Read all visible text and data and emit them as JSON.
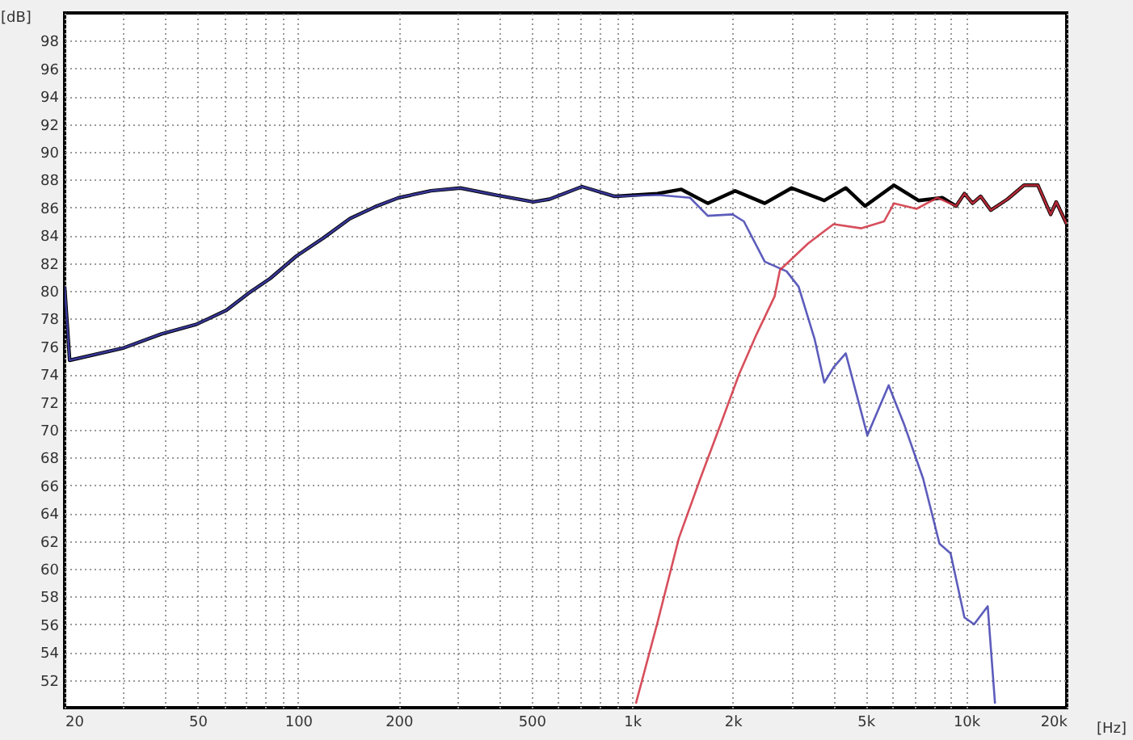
{
  "chart_data": {
    "type": "line",
    "xlabel": "[Hz]",
    "ylabel": "[dB]",
    "log": "x",
    "grid": true,
    "line_style": "solid",
    "marker": "none",
    "xlim": [
      20,
      20000
    ],
    "ylim": [
      50,
      100
    ],
    "xticks": [
      20,
      {
        "value": 30,
        "label": null
      },
      {
        "value": 40,
        "label": null
      },
      50,
      {
        "value": 60,
        "label": null
      },
      {
        "value": 70,
        "label": null
      },
      {
        "value": 80,
        "label": null
      },
      {
        "value": 90,
        "label": null
      },
      100,
      200,
      {
        "value": 300,
        "label": null
      },
      {
        "value": 400,
        "label": null
      },
      500,
      {
        "value": 600,
        "label": null
      },
      {
        "value": 700,
        "label": null
      },
      {
        "value": 800,
        "label": null
      },
      {
        "value": 900,
        "label": null
      },
      {
        "value": 1000,
        "label": "1k"
      },
      {
        "value": 2000,
        "label": "2k"
      },
      {
        "value": 3000,
        "label": null
      },
      {
        "value": 4000,
        "label": null
      },
      {
        "value": 5000,
        "label": "5k"
      },
      {
        "value": 6000,
        "label": null
      },
      {
        "value": 7000,
        "label": null
      },
      {
        "value": 8000,
        "label": null
      },
      {
        "value": 9000,
        "label": null
      },
      {
        "value": 10000,
        "label": "10k"
      },
      {
        "value": 20000,
        "label": "20k"
      }
    ],
    "yticks": [
      52,
      54,
      56,
      58,
      60,
      62,
      64,
      66,
      68,
      70,
      72,
      74,
      76,
      78,
      80,
      82,
      84,
      86,
      88,
      90,
      92,
      94,
      96,
      98
    ],
    "series": [
      {
        "color": "#000000",
        "x": [
          20,
          20.7,
          30.1,
          39,
          49.7,
          61,
          70.8,
          82.6,
          98.8,
          119,
          143,
          172,
          200,
          250,
          306,
          390,
          506,
          566,
          708,
          887,
          1190,
          1404,
          1684,
          2034,
          2494,
          3002,
          3760,
          4360,
          4980,
          6080,
          7200,
          8500,
          9330,
          9880,
          10450,
          11050,
          11850,
          13300,
          14900,
          16400,
          17900,
          18600,
          20000
        ],
        "values": [
          80.3,
          75.0,
          75.9,
          76.9,
          77.6,
          78.6,
          79.8,
          80.9,
          82.5,
          83.8,
          85.2,
          86.1,
          86.7,
          87.2,
          87.4,
          86.9,
          86.4,
          86.6,
          87.5,
          86.8,
          87.0,
          87.3,
          86.3,
          87.2,
          86.3,
          87.4,
          86.5,
          87.4,
          86.1,
          87.6,
          86.5,
          86.7,
          86.1,
          87.0,
          86.3,
          86.8,
          85.8,
          86.6,
          87.6,
          87.6,
          85.5,
          86.4,
          84.8
        ]
      },
      {
        "color": "#4040b0",
        "x": [
          20,
          20.7,
          30.1,
          39,
          49.7,
          61,
          70.8,
          82.6,
          98.8,
          119,
          143,
          172,
          200,
          250,
          306,
          390,
          506,
          566,
          708,
          887,
          1190,
          1490,
          1684,
          1998,
          2160,
          2494,
          2900,
          3150,
          3520,
          3760,
          4010,
          4360,
          5060,
          5860,
          6540,
          7430,
          8320,
          8980,
          9880,
          10560,
          11600,
          12200
        ],
        "values": [
          80.3,
          75.0,
          75.9,
          76.9,
          77.6,
          78.6,
          79.8,
          80.9,
          82.5,
          83.8,
          85.2,
          86.1,
          86.7,
          87.2,
          87.4,
          86.9,
          86.4,
          86.6,
          87.5,
          86.8,
          86.9,
          86.7,
          85.4,
          85.5,
          85.0,
          82.1,
          81.4,
          80.3,
          76.5,
          73.4,
          74.5,
          75.5,
          69.6,
          73.2,
          70.3,
          66.5,
          61.8,
          61.1,
          56.5,
          56.0,
          57.3,
          50.3
        ]
      },
      {
        "color": "#d03040",
        "x": [
          1026,
          1190,
          1380,
          1600,
          1860,
          2090,
          2360,
          2670,
          2770,
          3360,
          4010,
          4860,
          5680,
          6080,
          7100,
          8200,
          9330,
          9880,
          10450,
          11050,
          11850,
          13300,
          14900,
          16400,
          17900,
          18600,
          20000
        ],
        "values": [
          50.3,
          56.1,
          62.2,
          66.5,
          70.7,
          74.0,
          76.9,
          79.6,
          81.5,
          83.4,
          84.8,
          84.5,
          85.0,
          86.3,
          85.9,
          86.7,
          86.1,
          87.0,
          86.3,
          86.8,
          85.8,
          86.6,
          87.6,
          87.6,
          85.5,
          86.4,
          84.8
        ]
      }
    ]
  }
}
